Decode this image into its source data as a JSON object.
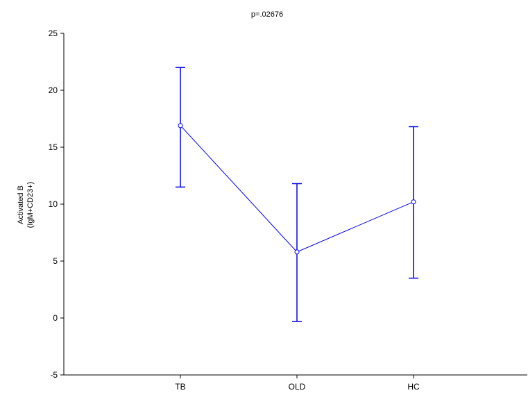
{
  "chart_data": {
    "type": "line",
    "title": "p=.02676",
    "xlabel": "",
    "ylabel_lines": [
      "Activated B",
      "(IgM+CD23+)"
    ],
    "categories": [
      "TB",
      "OLD",
      "HC"
    ],
    "series": [
      {
        "values": [
          16.9,
          5.8,
          10.2
        ],
        "error_low": [
          11.5,
          -0.3,
          3.5
        ],
        "error_high": [
          22.0,
          11.8,
          16.8
        ]
      }
    ],
    "ylim": [
      -5,
      25
    ],
    "yticks": [
      -5,
      0,
      5,
      10,
      15,
      20,
      25
    ],
    "ytick_labels": [
      "-5",
      "0",
      "5",
      "10",
      "15",
      "20",
      "25"
    ],
    "grid": false,
    "legend": "none",
    "color": "#0000ee"
  }
}
